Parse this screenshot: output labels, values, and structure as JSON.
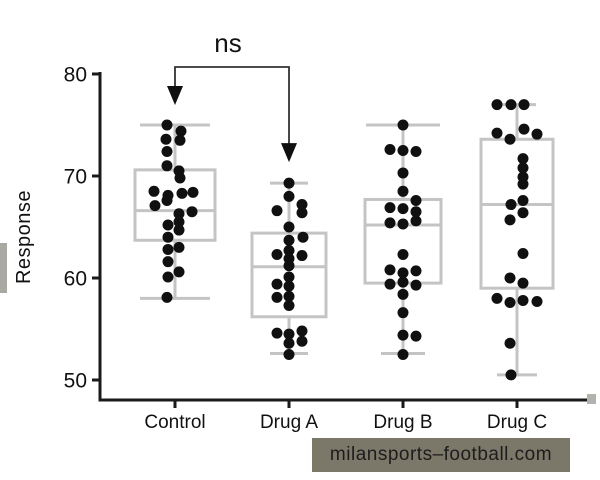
{
  "watermark": {
    "text": "milansports–football.com",
    "bg_color": "#7b7769",
    "text_color": "#1d1d1d"
  },
  "chart_data": {
    "type": "boxplot+dotplot",
    "title": "",
    "xlabel": "",
    "ylabel": "Response",
    "ylim": [
      50,
      80
    ],
    "y_ticks": [
      80,
      70,
      60,
      50
    ],
    "grid": false,
    "legend": "none",
    "categories": [
      "Control",
      "Drug A",
      "Drug B",
      "Drug C"
    ],
    "annotation": {
      "text": "ns",
      "between": [
        "Control",
        "Drug A"
      ]
    },
    "colors": {
      "axis": "#1a1a1a",
      "box": "#c4c4c4",
      "dot": "#101010",
      "bracket": "#333333",
      "text": "#111111"
    },
    "groups": [
      {
        "name": "Control",
        "box": {
          "q1": 63.7,
          "median": 66.6,
          "q3": 70.6,
          "whisker_low": 58.0,
          "whisker_high": 75.0
        },
        "points": [
          [
            75.0,
            -8
          ],
          [
            74.4,
            6
          ],
          [
            73.6,
            -9
          ],
          [
            73.5,
            5
          ],
          [
            72.4,
            -8
          ],
          [
            71.0,
            -8
          ],
          [
            70.5,
            4
          ],
          [
            69.8,
            5
          ],
          [
            68.5,
            -21
          ],
          [
            68.4,
            18
          ],
          [
            68.3,
            7
          ],
          [
            68.1,
            -7
          ],
          [
            67.6,
            -8
          ],
          [
            67.1,
            -20
          ],
          [
            66.5,
            17
          ],
          [
            66.3,
            4
          ],
          [
            65.5,
            4
          ],
          [
            65.2,
            -7
          ],
          [
            64.7,
            4
          ],
          [
            64.0,
            -7
          ],
          [
            63.0,
            4
          ],
          [
            62.8,
            -7
          ],
          [
            61.6,
            -7
          ],
          [
            60.6,
            4
          ],
          [
            60.1,
            -7
          ],
          [
            58.1,
            -8
          ]
        ]
      },
      {
        "name": "Drug A",
        "box": {
          "q1": 56.2,
          "median": 61.1,
          "q3": 64.4,
          "whisker_low": 52.6,
          "whisker_high": 69.3
        },
        "points": [
          [
            69.3,
            0
          ],
          [
            68.0,
            0
          ],
          [
            67.2,
            13
          ],
          [
            66.6,
            -12
          ],
          [
            66.4,
            13
          ],
          [
            65.0,
            0
          ],
          [
            64.0,
            14
          ],
          [
            63.7,
            0
          ],
          [
            62.7,
            0
          ],
          [
            62.3,
            -12
          ],
          [
            62.2,
            13
          ],
          [
            61.9,
            0
          ],
          [
            61.2,
            0
          ],
          [
            60.1,
            0
          ],
          [
            59.4,
            -12
          ],
          [
            59.2,
            0
          ],
          [
            58.2,
            0
          ],
          [
            58.1,
            -12
          ],
          [
            57.3,
            0
          ],
          [
            54.8,
            13
          ],
          [
            54.6,
            -12
          ],
          [
            54.5,
            0
          ],
          [
            53.8,
            13
          ],
          [
            53.6,
            0
          ],
          [
            52.5,
            0
          ]
        ]
      },
      {
        "name": "Drug B",
        "box": {
          "q1": 59.5,
          "median": 65.2,
          "q3": 67.7,
          "whisker_low": 52.6,
          "whisker_high": 75.0
        },
        "points": [
          [
            75.0,
            0
          ],
          [
            72.6,
            -13
          ],
          [
            72.5,
            0
          ],
          [
            72.4,
            13
          ],
          [
            70.3,
            0
          ],
          [
            68.5,
            0
          ],
          [
            67.6,
            13
          ],
          [
            66.9,
            -13
          ],
          [
            66.8,
            0
          ],
          [
            66.5,
            13
          ],
          [
            65.6,
            13
          ],
          [
            65.4,
            -13
          ],
          [
            65.3,
            0
          ],
          [
            62.3,
            0
          ],
          [
            60.8,
            -13
          ],
          [
            60.7,
            13
          ],
          [
            60.5,
            0
          ],
          [
            59.6,
            0
          ],
          [
            59.4,
            -13
          ],
          [
            59.3,
            13
          ],
          [
            58.4,
            0
          ],
          [
            56.6,
            0
          ],
          [
            54.4,
            0
          ],
          [
            54.3,
            13
          ],
          [
            52.5,
            0
          ]
        ]
      },
      {
        "name": "Drug C",
        "box": {
          "q1": 59.0,
          "median": 67.2,
          "q3": 73.6,
          "whisker_low": 50.5,
          "whisker_high": 77.0
        },
        "points": [
          [
            77.0,
            -20
          ],
          [
            77.0,
            -6
          ],
          [
            77.0,
            7
          ],
          [
            74.6,
            7
          ],
          [
            74.2,
            -20
          ],
          [
            74.1,
            20
          ],
          [
            73.6,
            -7
          ],
          [
            71.7,
            6
          ],
          [
            70.8,
            6
          ],
          [
            69.9,
            6
          ],
          [
            69.2,
            6
          ],
          [
            67.6,
            6
          ],
          [
            67.2,
            -6
          ],
          [
            66.4,
            6
          ],
          [
            65.7,
            -7
          ],
          [
            62.4,
            6
          ],
          [
            60.0,
            -7
          ],
          [
            59.5,
            6
          ],
          [
            58.0,
            -20
          ],
          [
            57.8,
            6
          ],
          [
            57.7,
            20
          ],
          [
            57.6,
            -7
          ],
          [
            53.6,
            -7
          ],
          [
            50.5,
            -6
          ]
        ]
      }
    ]
  }
}
